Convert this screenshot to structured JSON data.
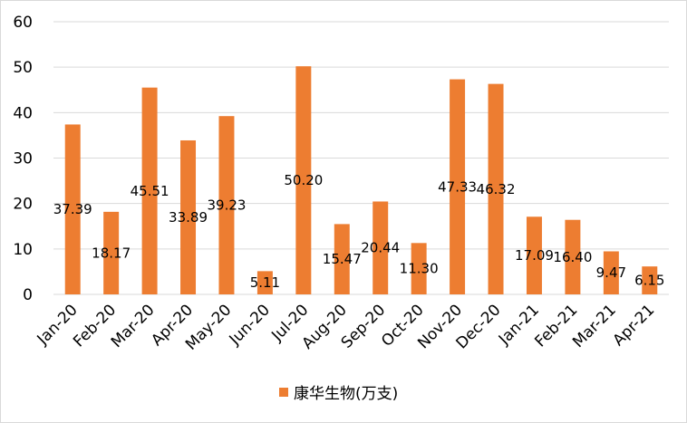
{
  "chart_data": {
    "type": "bar",
    "categories": [
      "Jan-20",
      "Feb-20",
      "Mar-20",
      "Apr-20",
      "May-20",
      "Jun-20",
      "Jul-20",
      "Aug-20",
      "Sep-20",
      "Oct-20",
      "Nov-20",
      "Dec-20",
      "Jan-21",
      "Feb-21",
      "Mar-21",
      "Apr-21"
    ],
    "series": [
      {
        "name": "康华生物(万支)",
        "values": [
          37.39,
          18.17,
          45.51,
          33.89,
          39.23,
          5.11,
          50.2,
          15.47,
          20.44,
          11.3,
          47.33,
          46.32,
          17.09,
          16.4,
          9.47,
          6.15
        ],
        "labels": [
          "37.39",
          "18.17",
          "45.51",
          "33.89",
          "39.23",
          "5.11",
          "50.20",
          "15.47",
          "20.44",
          "11.30",
          "47.33",
          "46.32",
          "17.09",
          "16.40",
          "9.47",
          "6.15"
        ],
        "color": "#ED7D31"
      }
    ],
    "ylim": [
      0,
      60
    ],
    "yticks": [
      0,
      10,
      20,
      30,
      40,
      50,
      60
    ],
    "grid": true,
    "legend": "bottom",
    "title": "",
    "xlabel": "",
    "ylabel": ""
  }
}
